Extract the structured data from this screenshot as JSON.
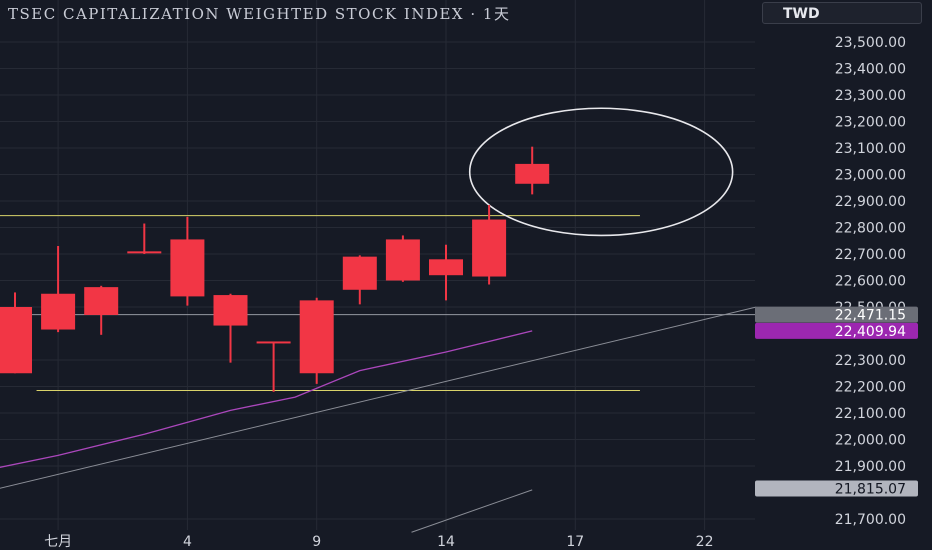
{
  "title": "TSEC CAPITALIZATION WEIGHTED STOCK INDEX · 1天",
  "currency": "TWD",
  "chart_data": {
    "type": "candlestick",
    "title": "TSEC CAPITALIZATION WEIGHTED STOCK INDEX · 1天",
    "currency": "TWD",
    "interval": "1天",
    "ylim": [
      21650,
      23600
    ],
    "y_ticks": [
      {
        "value": 23500,
        "label": "23,500.00"
      },
      {
        "value": 23400,
        "label": "23,400.00"
      },
      {
        "value": 23300,
        "label": "23,300.00"
      },
      {
        "value": 23200,
        "label": "23,200.00"
      },
      {
        "value": 23100,
        "label": "23,100.00"
      },
      {
        "value": 23000,
        "label": "23,000.00"
      },
      {
        "value": 22900,
        "label": "22,900.00"
      },
      {
        "value": 22800,
        "label": "22,800.00"
      },
      {
        "value": 22700,
        "label": "22,700.00"
      },
      {
        "value": 22600,
        "label": "22,600.00"
      },
      {
        "value": 22500,
        "label": "22,500.00"
      },
      {
        "value": 22300,
        "label": "22,300.00"
      },
      {
        "value": 22200,
        "label": "22,200.00"
      },
      {
        "value": 22100,
        "label": "22,100.00"
      },
      {
        "value": 22000,
        "label": "22,000.00"
      },
      {
        "value": 21900,
        "label": "21,900.00"
      },
      {
        "value": 21700,
        "label": "21,700.00"
      }
    ],
    "x_ticks": [
      {
        "index": 1,
        "label": "七月"
      },
      {
        "index": 4,
        "label": "4"
      },
      {
        "index": 7,
        "label": "9"
      },
      {
        "index": 10,
        "label": "14"
      },
      {
        "index": 13,
        "label": "17"
      },
      {
        "index": 16,
        "label": "22"
      }
    ],
    "candles": [
      {
        "open": 22250,
        "high": 22555,
        "low": 22250,
        "close": 22500
      },
      {
        "open": 22415,
        "high": 22730,
        "low": 22405,
        "close": 22550
      },
      {
        "open": 22470,
        "high": 22580,
        "low": 22395,
        "close": 22575
      },
      {
        "open": 22705,
        "high": 22815,
        "low": 22700,
        "close": 22710
      },
      {
        "open": 22540,
        "high": 22840,
        "low": 22505,
        "close": 22755
      },
      {
        "open": 22430,
        "high": 22550,
        "low": 22290,
        "close": 22545
      },
      {
        "open": 22365,
        "high": 22365,
        "low": 22180,
        "close": 22370
      },
      {
        "open": 22250,
        "high": 22535,
        "low": 22210,
        "close": 22525
      },
      {
        "open": 22565,
        "high": 22695,
        "low": 22510,
        "close": 22690
      },
      {
        "open": 22600,
        "high": 22770,
        "low": 22595,
        "close": 22755
      },
      {
        "open": 22620,
        "high": 22735,
        "low": 22525,
        "close": 22680
      },
      {
        "open": 22615,
        "high": 22885,
        "low": 22585,
        "close": 22830
      },
      {
        "open": 22965,
        "high": 23105,
        "low": 22925,
        "close": 23040
      }
    ],
    "moving_average": {
      "color": "#ab47bc",
      "points": [
        {
          "index": -0.5,
          "value": 21890
        },
        {
          "index": 1,
          "value": 21940
        },
        {
          "index": 3,
          "value": 22020
        },
        {
          "index": 5,
          "value": 22110
        },
        {
          "index": 6.5,
          "value": 22160
        },
        {
          "index": 8,
          "value": 22260
        },
        {
          "index": 10,
          "value": 22330
        },
        {
          "index": 12,
          "value": 22410
        }
      ]
    },
    "horizontal_lines": [
      {
        "value": 22845,
        "color": "#d9d36a",
        "from_index": -0.5,
        "to_index": 14.5
      },
      {
        "value": 22185,
        "color": "#d9d36a",
        "from_index": 0.5,
        "to_index": 14.5
      },
      {
        "value": 22471.15,
        "color": "#9598a1",
        "from_index": -0.5,
        "to_index": 17.5
      }
    ],
    "trend_lines": [
      {
        "color": "#8a8d96",
        "from": {
          "index": -0.5,
          "value": 21810
        },
        "to": {
          "index": 17.2,
          "value": 22500
        }
      },
      {
        "color": "#8a8d96",
        "from": {
          "index": 9.2,
          "value": 21650
        },
        "to": {
          "index": 12,
          "value": 21810
        }
      }
    ],
    "ellipse": {
      "center_index": 13.6,
      "center_value": 23010,
      "radius_index": 3.05,
      "radius_value": 240,
      "color": "#e8e8ec"
    },
    "price_labels": [
      {
        "value": 22471.15,
        "label": "22,471.15",
        "bg": "#6b6e77",
        "fg": "#ffffff"
      },
      {
        "value": 22409.94,
        "label": "22,409.94",
        "bg": "#9c27b0",
        "fg": "#ffffff"
      },
      {
        "value": 21815.07,
        "label": "21,815.07",
        "bg": "#b2b5be",
        "fg": "#131722"
      }
    ],
    "colors": {
      "up": "#f23645",
      "down": "#4caf50",
      "background": "#161a25",
      "grid": "#262a35",
      "text": "#d1d4dc"
    },
    "grid": true
  }
}
